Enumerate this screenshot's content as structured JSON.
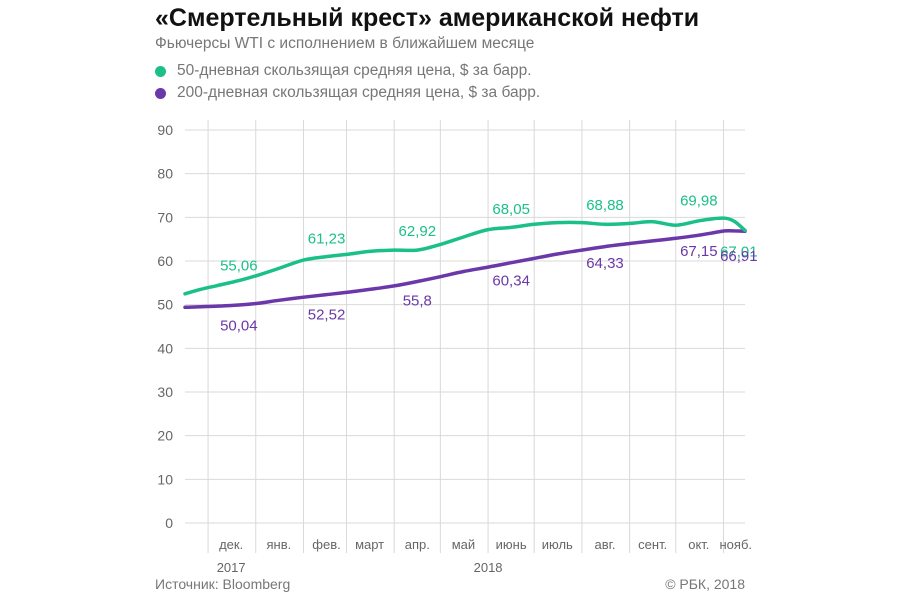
{
  "title": "«Смертельный крест» американской нефти",
  "subtitle": "Фьючерсы WTI с исполнением в ближайшем месяце",
  "source": "Источник: Bloomberg",
  "copyright": "© РБК, 2018",
  "colors": {
    "ma50": "#1bbf8a",
    "ma200": "#6a38a8",
    "grid": "#d9d9d9",
    "text": "#666666"
  },
  "chart_data": {
    "type": "line",
    "title": "«Смертельный крест» американской нефти",
    "ylim": [
      0,
      90
    ],
    "yticks": [
      0,
      10,
      20,
      30,
      40,
      50,
      60,
      70,
      80,
      90
    ],
    "grid": true,
    "legend_position": "top-left",
    "xlim": [
      "2017-11-15",
      "2018-11-14"
    ],
    "month_ticks": [
      {
        "label": "дек.",
        "date": "2017-12-15"
      },
      {
        "label": "янв.",
        "date": "2018-01-15"
      },
      {
        "label": "фев.",
        "date": "2018-02-15"
      },
      {
        "label": "март",
        "date": "2018-03-15"
      },
      {
        "label": "апр.",
        "date": "2018-04-15"
      },
      {
        "label": "май",
        "date": "2018-05-15"
      },
      {
        "label": "июнь",
        "date": "2018-06-15"
      },
      {
        "label": "июль",
        "date": "2018-07-15"
      },
      {
        "label": "авг.",
        "date": "2018-08-15"
      },
      {
        "label": "сент.",
        "date": "2018-09-15"
      },
      {
        "label": "окт.",
        "date": "2018-10-15"
      },
      {
        "label": "нояб.",
        "date": "2018-11-08"
      }
    ],
    "separators": [
      "2017-11-30",
      "2017-12-31",
      "2018-01-31",
      "2018-02-28",
      "2018-03-31",
      "2018-04-30",
      "2018-05-31",
      "2018-06-30",
      "2018-07-31",
      "2018-08-31",
      "2018-09-30",
      "2018-10-31"
    ],
    "year_labels": [
      {
        "label": "2017",
        "date": "2017-12-15"
      },
      {
        "label": "2018",
        "date": "2018-05-31"
      }
    ],
    "series": [
      {
        "name": "50-дневная скользящая средняя цена, $ за барр.",
        "color": "#1bbf8a",
        "points": [
          [
            "2017-11-15",
            52.5
          ],
          [
            "2017-11-25",
            53.5
          ],
          [
            "2017-12-05",
            54.3
          ],
          [
            "2017-12-20",
            55.5
          ],
          [
            "2018-01-01",
            56.7
          ],
          [
            "2018-01-15",
            58.3
          ],
          [
            "2018-01-31",
            60.2
          ],
          [
            "2018-02-15",
            61.0
          ],
          [
            "2018-02-28",
            61.5
          ],
          [
            "2018-03-15",
            62.2
          ],
          [
            "2018-03-31",
            62.5
          ],
          [
            "2018-04-15",
            62.5
          ],
          [
            "2018-04-30",
            63.8
          ],
          [
            "2018-05-15",
            65.5
          ],
          [
            "2018-05-31",
            67.2
          ],
          [
            "2018-06-15",
            67.7
          ],
          [
            "2018-06-30",
            68.4
          ],
          [
            "2018-07-15",
            68.8
          ],
          [
            "2018-07-31",
            68.8
          ],
          [
            "2018-08-15",
            68.4
          ],
          [
            "2018-08-31",
            68.6
          ],
          [
            "2018-09-15",
            69.0
          ],
          [
            "2018-09-30",
            68.2
          ],
          [
            "2018-10-15",
            69.2
          ],
          [
            "2018-10-25",
            69.7
          ],
          [
            "2018-11-01",
            69.8
          ],
          [
            "2018-11-07",
            69.1
          ],
          [
            "2018-11-14",
            67.0
          ]
        ]
      },
      {
        "name": "200-дневная скользящая средняя цена, $ за барр.",
        "color": "#6a38a8",
        "points": [
          [
            "2017-11-15",
            49.4
          ],
          [
            "2017-12-15",
            49.8
          ],
          [
            "2018-01-01",
            50.3
          ],
          [
            "2018-01-15",
            51.0
          ],
          [
            "2018-01-31",
            51.7
          ],
          [
            "2018-02-15",
            52.3
          ],
          [
            "2018-02-28",
            52.8
          ],
          [
            "2018-03-15",
            53.5
          ],
          [
            "2018-03-31",
            54.3
          ],
          [
            "2018-04-15",
            55.3
          ],
          [
            "2018-04-30",
            56.4
          ],
          [
            "2018-05-15",
            57.6
          ],
          [
            "2018-05-31",
            58.6
          ],
          [
            "2018-06-15",
            59.6
          ],
          [
            "2018-06-30",
            60.6
          ],
          [
            "2018-07-15",
            61.6
          ],
          [
            "2018-07-31",
            62.5
          ],
          [
            "2018-08-15",
            63.3
          ],
          [
            "2018-08-31",
            64.0
          ],
          [
            "2018-09-15",
            64.6
          ],
          [
            "2018-09-30",
            65.2
          ],
          [
            "2018-10-15",
            65.9
          ],
          [
            "2018-10-25",
            66.5
          ],
          [
            "2018-11-01",
            66.9
          ],
          [
            "2018-11-07",
            66.9
          ],
          [
            "2018-11-14",
            66.8
          ]
        ]
      }
    ],
    "data_labels": [
      {
        "series": 0,
        "text": "55,06",
        "date": "2017-12-20",
        "value": 55.06,
        "pos": "above"
      },
      {
        "series": 0,
        "text": "61,23",
        "date": "2018-02-15",
        "value": 61.23,
        "pos": "above"
      },
      {
        "series": 0,
        "text": "62,92",
        "date": "2018-04-15",
        "value": 62.92,
        "pos": "above"
      },
      {
        "series": 0,
        "text": "68,05",
        "date": "2018-06-15",
        "value": 68.05,
        "pos": "above"
      },
      {
        "series": 0,
        "text": "68,88",
        "date": "2018-08-15",
        "value": 68.88,
        "pos": "above"
      },
      {
        "series": 0,
        "text": "69,98",
        "date": "2018-10-15",
        "value": 69.98,
        "pos": "above"
      },
      {
        "series": 0,
        "text": "67,01",
        "date": "2018-11-10",
        "value": 67.01,
        "pos": "below"
      },
      {
        "series": 1,
        "text": "50,04",
        "date": "2017-12-20",
        "value": 50.04,
        "pos": "below"
      },
      {
        "series": 1,
        "text": "52,52",
        "date": "2018-02-15",
        "value": 52.52,
        "pos": "below"
      },
      {
        "series": 1,
        "text": "55,8",
        "date": "2018-04-15",
        "value": 55.8,
        "pos": "below"
      },
      {
        "series": 1,
        "text": "60,34",
        "date": "2018-06-15",
        "value": 60.34,
        "pos": "below"
      },
      {
        "series": 1,
        "text": "64,33",
        "date": "2018-08-15",
        "value": 64.33,
        "pos": "below"
      },
      {
        "series": 1,
        "text": "67,15",
        "date": "2018-10-15",
        "value": 67.15,
        "pos": "below"
      },
      {
        "series": 1,
        "text": "66,91",
        "date": "2018-11-10",
        "value": 66.91,
        "pos": "below2"
      }
    ]
  }
}
